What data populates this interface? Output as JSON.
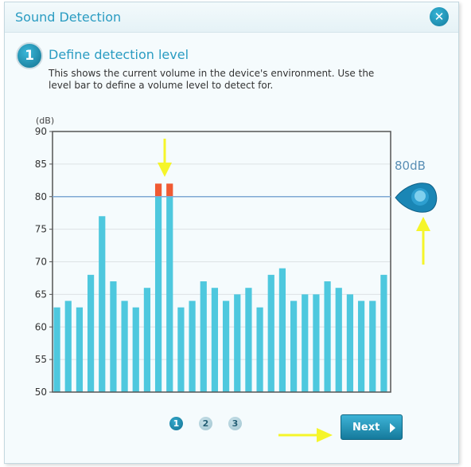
{
  "dialog": {
    "title": "Sound Detection",
    "close_icon": "close-icon"
  },
  "step": {
    "number": "1",
    "title": "Define detection level",
    "description": "This shows the current volume in the device's environment. Use the level bar to define a volume level to detect for."
  },
  "chart_data": {
    "type": "bar",
    "unit_label": "(dB)",
    "ylim": [
      50,
      90
    ],
    "yticks": [
      50,
      55,
      60,
      65,
      70,
      75,
      80,
      85,
      90
    ],
    "grid": true,
    "threshold": 80,
    "values": [
      63,
      64,
      63,
      68,
      77,
      67,
      64,
      63,
      66,
      82,
      82,
      63,
      64,
      67,
      66,
      64,
      65,
      66,
      63,
      68,
      69,
      64,
      65,
      65,
      67,
      66,
      65,
      64,
      64,
      68
    ],
    "bar_color": "#4ec8de",
    "exceed_color": "#f05a32",
    "threshold_color": "#7ea8d4"
  },
  "level": {
    "readout": "80dB",
    "handle_icon": "level-handle-icon"
  },
  "pagination": {
    "pages": [
      "1",
      "2",
      "3"
    ],
    "current": "1"
  },
  "buttons": {
    "next_label": "Next"
  },
  "annotations": {
    "arrow_color": "#f5f52a"
  }
}
